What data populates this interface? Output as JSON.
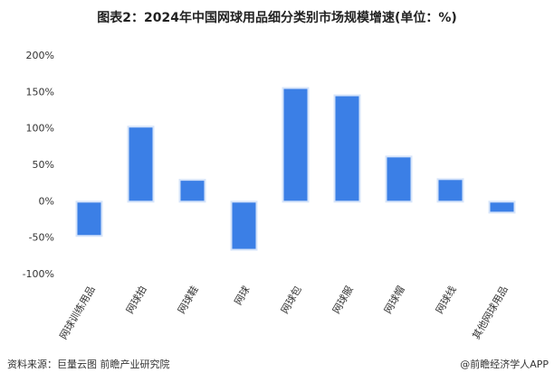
{
  "chart_data": {
    "type": "bar",
    "title": "图表2：2024年中国网球用品细分类别市场规模增速(单位：%)",
    "categories": [
      "网球训练用品",
      "网球拍",
      "网球鞋",
      "网球",
      "网球包",
      "网球服",
      "网球帽",
      "网球线",
      "其他网球用品"
    ],
    "values": [
      -47,
      103,
      30,
      -66,
      156,
      146,
      62,
      31,
      -15
    ],
    "color": "#3b7fe6",
    "ylim": [
      -100,
      200
    ],
    "yticks": [
      {
        "value": -100,
        "label": "-100%"
      },
      {
        "value": -50,
        "label": "-50%"
      },
      {
        "value": 0,
        "label": "0%"
      },
      {
        "value": 50,
        "label": "50%"
      },
      {
        "value": 100,
        "label": "100%"
      },
      {
        "value": 150,
        "label": "150%"
      },
      {
        "value": 200,
        "label": "200%"
      }
    ],
    "source": "资料来源：巨量云图 前瞻产业研究院",
    "credit": "@前瞻经济学人APP"
  }
}
